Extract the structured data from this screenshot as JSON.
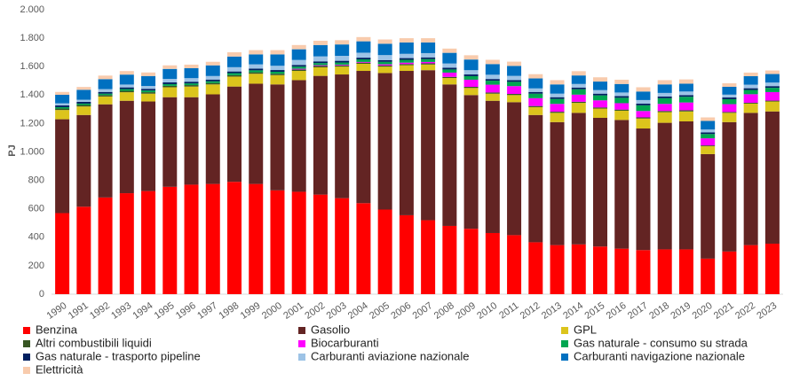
{
  "chart_data": {
    "type": "stacked_bar",
    "y_label": "PJ",
    "categories": [
      "1990",
      "1991",
      "1992",
      "1993",
      "1994",
      "1995",
      "1996",
      "1997",
      "1998",
      "1999",
      "2000",
      "2001",
      "2002",
      "2003",
      "2004",
      "2005",
      "2006",
      "2007",
      "2008",
      "2009",
      "2010",
      "2011",
      "2012",
      "2013",
      "2014",
      "2015",
      "2016",
      "2017",
      "2018",
      "2019",
      "2020",
      "2021",
      "2022",
      "2023"
    ],
    "ylim": [
      0,
      2000
    ],
    "yticks": [
      0,
      200,
      400,
      600,
      800,
      {
        "value": 1000,
        "label": "1.000"
      },
      {
        "value": 1200,
        "label": "1.200"
      },
      {
        "value": 1400,
        "label": "1.400"
      },
      {
        "value": 1600,
        "label": "1.600"
      },
      {
        "value": 1800,
        "label": "1.800"
      },
      {
        "value": 2000,
        "label": "2.000"
      }
    ],
    "grid": false,
    "legend": "bottom",
    "series": [
      {
        "name": "Benzina",
        "color": "#ff0000",
        "values": [
          570,
          615,
          680,
          710,
          725,
          755,
          770,
          775,
          790,
          775,
          730,
          720,
          700,
          675,
          640,
          595,
          555,
          520,
          480,
          460,
          430,
          415,
          365,
          345,
          350,
          335,
          320,
          310,
          315,
          315,
          250,
          300,
          345,
          355
        ]
      },
      {
        "name": "Gasolio",
        "color": "#632423",
        "values": [
          660,
          645,
          655,
          650,
          630,
          630,
          615,
          630,
          670,
          705,
          745,
          785,
          835,
          870,
          930,
          960,
          1015,
          1055,
          995,
          940,
          930,
          935,
          895,
          865,
          925,
          905,
          905,
          855,
          890,
          900,
          735,
          910,
          930,
          930
        ]
      },
      {
        "name": "GPL",
        "color": "#dcc41c",
        "values": [
          65,
          60,
          55,
          60,
          55,
          70,
          75,
          70,
          70,
          70,
          65,
          65,
          60,
          55,
          50,
          45,
          40,
          40,
          45,
          50,
          50,
          50,
          55,
          65,
          70,
          65,
          65,
          70,
          75,
          70,
          55,
          65,
          65,
          70
        ]
      },
      {
        "name": "Altri combustibili liquidi",
        "color": "#375623",
        "values": [
          10,
          10,
          10,
          10,
          10,
          10,
          10,
          10,
          10,
          10,
          10,
          10,
          10,
          8,
          8,
          8,
          8,
          8,
          8,
          8,
          8,
          8,
          8,
          8,
          8,
          8,
          8,
          8,
          8,
          8,
          6,
          6,
          6,
          6
        ]
      },
      {
        "name": "Biocarburanti",
        "color": "#ff00ff",
        "values": [
          0,
          0,
          0,
          0,
          0,
          0,
          0,
          0,
          0,
          0,
          0,
          5,
          5,
          5,
          5,
          8,
          10,
          10,
          30,
          50,
          55,
          55,
          55,
          55,
          50,
          50,
          45,
          45,
          50,
          55,
          50,
          55,
          60,
          60
        ]
      },
      {
        "name": "Gas naturale - consumo su strada",
        "color": "#00a651",
        "values": [
          10,
          10,
          10,
          12,
          12,
          12,
          12,
          12,
          14,
          14,
          14,
          15,
          15,
          16,
          18,
          18,
          20,
          20,
          22,
          25,
          28,
          30,
          32,
          35,
          38,
          35,
          38,
          40,
          40,
          40,
          30,
          35,
          30,
          30
        ]
      },
      {
        "name": "Gas naturale - trasporto pipeline",
        "color": "#002060",
        "values": [
          12,
          12,
          12,
          12,
          12,
          12,
          12,
          12,
          12,
          12,
          12,
          12,
          12,
          12,
          12,
          12,
          12,
          12,
          12,
          12,
          12,
          12,
          12,
          12,
          12,
          12,
          12,
          12,
          12,
          12,
          12,
          12,
          12,
          12
        ]
      },
      {
        "name": "Carburanti aviazione nazionale",
        "color": "#9dc3e6",
        "values": [
          15,
          15,
          20,
          20,
          20,
          25,
          25,
          25,
          30,
          30,
          30,
          35,
          35,
          35,
          35,
          35,
          30,
          30,
          30,
          30,
          30,
          30,
          25,
          25,
          25,
          25,
          25,
          25,
          25,
          25,
          20,
          20,
          25,
          25
        ]
      },
      {
        "name": "Carburanti navigazione nazionale",
        "color": "#0070c0",
        "values": [
          60,
          70,
          70,
          70,
          70,
          70,
          70,
          75,
          75,
          70,
          80,
          75,
          80,
          80,
          80,
          80,
          80,
          75,
          75,
          75,
          75,
          70,
          70,
          65,
          60,
          60,
          60,
          60,
          60,
          55,
          60,
          55,
          60,
          60
        ]
      },
      {
        "name": "Elettricità",
        "color": "#f8cbad",
        "values": [
          20,
          20,
          25,
          25,
          25,
          25,
          25,
          25,
          30,
          30,
          30,
          30,
          30,
          30,
          30,
          30,
          30,
          30,
          30,
          30,
          30,
          30,
          30,
          30,
          30,
          30,
          30,
          30,
          30,
          30,
          25,
          25,
          25,
          25
        ]
      }
    ]
  }
}
